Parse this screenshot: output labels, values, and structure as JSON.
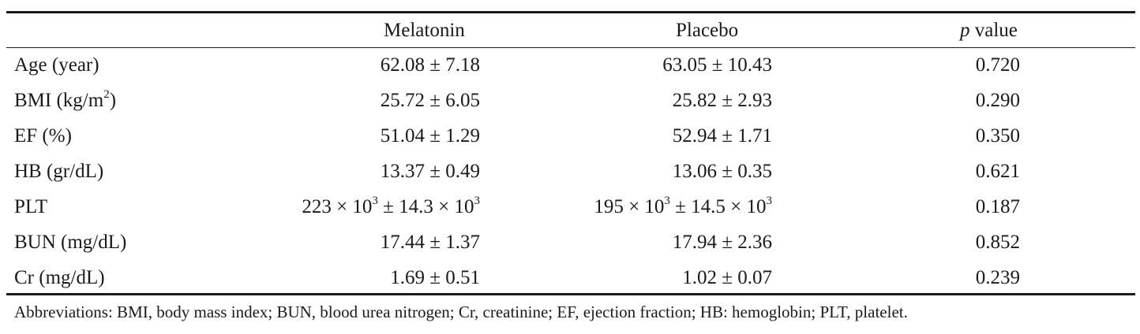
{
  "table": {
    "headers": {
      "col1": "",
      "melatonin": "Melatonin",
      "placebo": "Placebo",
      "p_symbol": "p",
      "p_word": "value"
    },
    "rows": [
      {
        "label": "Age (year)",
        "label_sup": "",
        "label_suffix": "",
        "melatonin": "62.08 ± 7.18",
        "placebo": "63.05 ± 10.43",
        "p": "0.720"
      },
      {
        "label": "BMI (kg/m",
        "label_sup": "2",
        "label_suffix": ")",
        "melatonin": "25.72 ± 6.05",
        "placebo": "25.82 ± 2.93",
        "p": "0.290"
      },
      {
        "label": "EF (%)",
        "label_sup": "",
        "label_suffix": "",
        "melatonin": "51.04 ± 1.29",
        "placebo": "52.94 ± 1.71",
        "p": "0.350"
      },
      {
        "label": "HB (gr/dL)",
        "label_sup": "",
        "label_suffix": "",
        "melatonin": "13.37 ± 0.49",
        "placebo": "13.06 ± 0.35",
        "p": "0.621"
      },
      {
        "label": "PLT",
        "label_sup": "",
        "label_suffix": "",
        "melatonin": "",
        "placebo": "",
        "p": "0.187"
      },
      {
        "label": "BUN (mg/dL)",
        "label_sup": "",
        "label_suffix": "",
        "melatonin": "17.44 ± 1.37",
        "placebo": "17.94 ± 2.36",
        "p": "0.852"
      },
      {
        "label": "Cr (mg/dL)",
        "label_sup": "",
        "label_suffix": "",
        "melatonin": "1.69 ± 0.51",
        "placebo": "1.02 ± 0.07",
        "p": "0.239"
      }
    ],
    "plt": {
      "melatonin": {
        "a": "223 × 10",
        "a_sup": "3",
        "b": " ± 14.3 × 10",
        "b_sup": "3"
      },
      "placebo": {
        "a": "195 × 10",
        "a_sup": "3",
        "b": " ± 14.5 × 10",
        "b_sup": "3"
      }
    }
  },
  "footnote": "Abbreviations: BMI, body mass index; BUN, blood urea nitrogen; Cr, creatinine; EF, ejection fraction; HB: hemoglobin; PLT, platelet."
}
